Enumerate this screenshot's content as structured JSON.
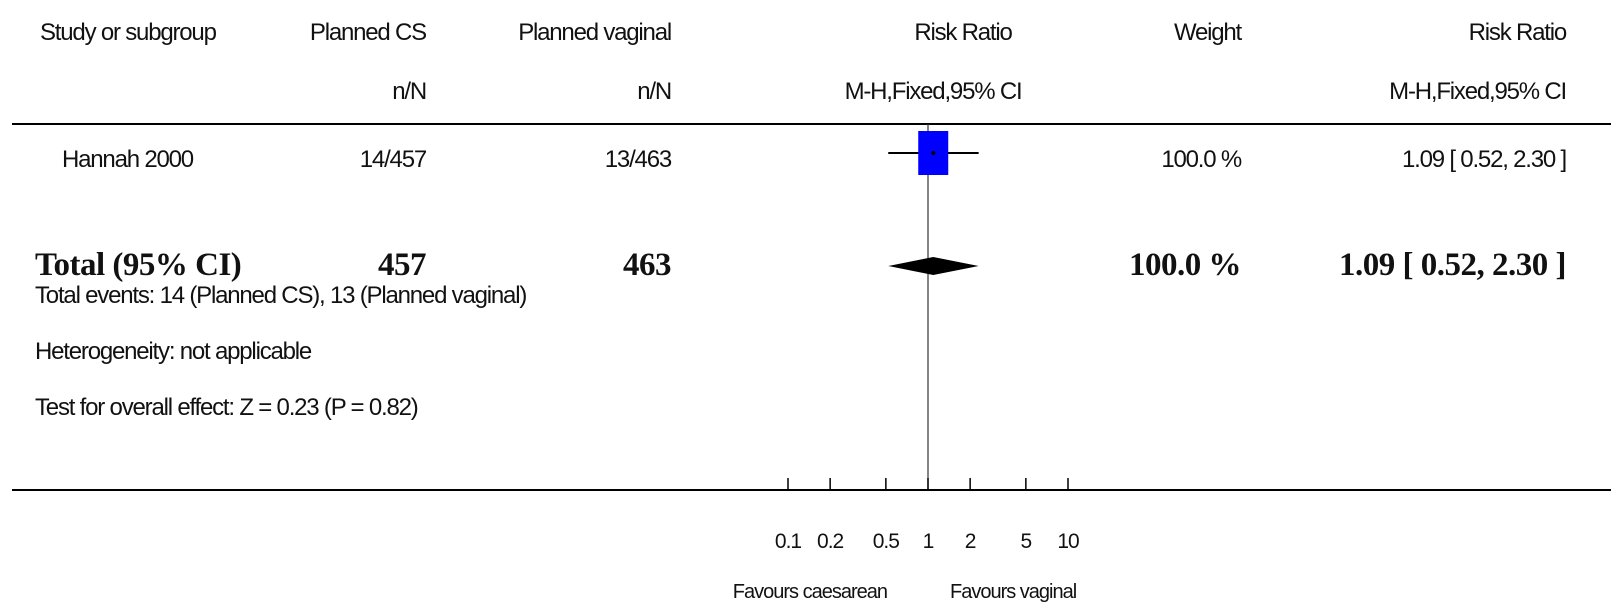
{
  "headers": {
    "study": "Study or subgroup",
    "group1": "Planned CS",
    "group1_sub": "n/N",
    "group2": "Planned vaginal",
    "group2_sub": "n/N",
    "effect": "Risk Ratio",
    "effect_sub": "M-H,Fixed,95% CI",
    "weight": "Weight",
    "effect_right": "Risk Ratio",
    "effect_right_sub": "M-H,Fixed,95% CI"
  },
  "studies": [
    {
      "name": "Hannah 2000",
      "group1": "14/457",
      "group2": "13/463",
      "weight": "100.0 %",
      "ci_text": "1.09 [ 0.52, 2.30 ]"
    }
  ],
  "total": {
    "label": "Total (95% CI)",
    "group1": "457",
    "group2": "463",
    "weight": "100.0 %",
    "ci_text": "1.09 [ 0.52, 2.30 ]"
  },
  "footnotes": {
    "events": "Total events: 14 (Planned CS), 13 (Planned vaginal)",
    "heterogeneity": "Heterogeneity: not applicable",
    "overall": "Test for overall effect: Z = 0.23 (P = 0.82)"
  },
  "axis": {
    "favours_left": "Favours caesarean",
    "favours_right": "Favours vaginal"
  },
  "colors": {
    "study_marker": "#0000ff",
    "diamond": "#000000",
    "lines": "#000000"
  },
  "chart_data": {
    "type": "forest",
    "scale": "log",
    "xlim": [
      0.1,
      10
    ],
    "ticks": [
      0.1,
      0.2,
      0.5,
      1,
      2,
      5,
      10
    ],
    "tick_labels": [
      "0.1",
      "0.2",
      "0.5",
      "1",
      "2",
      "5",
      "10"
    ],
    "null_value": 1,
    "studies": [
      {
        "name": "Hannah 2000",
        "rr": 1.09,
        "lower": 0.52,
        "upper": 2.3,
        "weight": 100.0
      }
    ],
    "pooled": {
      "rr": 1.09,
      "lower": 0.52,
      "upper": 2.3
    }
  }
}
